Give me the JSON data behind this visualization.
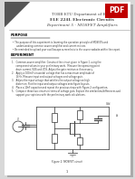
{
  "bg_color": "#ffffff",
  "page_bg": "#d8d8d8",
  "fold_color": "#888888",
  "fold_dark": "#555555",
  "title1": "TOBB ETU Department of ELE",
  "title2": "ELE 224L Electronic Circuits",
  "title3": "Experiment 5 - MOSFET Amplifiers",
  "section1": "PURPOSE",
  "bullet1a": "The purpose of this experiment is learning the operation principle of MOSFETs and",
  "bullet1b": "understanding common source amplifier and current mirrors.",
  "bullet1c": "Be reminded to upload your oscilloscope screenshots to the course website within the report.",
  "section2": "EXPERIMENT",
  "exp1": "1.   Common-source amplifier: Construct the circuit given in Figure 1 using the",
  "exp2": "      component values in your preliminary work.  Measure the operating point",
  "exp3": "      drain current, VGS and VDS. Adjust the gate resistance if necessary.",
  "exp4": "2.   Apply a 100mV sinusoidal voltage that has a maximum amplitude of",
  "exp5": "      1kHz. Measure input and output voltages and voltage gain.",
  "exp6": "3.   Adjust the input voltage that satisfies the output voltage on high",
  "exp7": "      distortion. Plot the input and output voltages onto figure layouts.",
  "exp8": "4.   Place a 10nF capacitor and repeat the previous steps with Figure 2 configuration.",
  "exp9": "5.   Compare these two circuits in terms of voltage gain. Explain the similarities/differences and",
  "exp10": "      support your opinions with the preliminary work calculations.",
  "fig_caption": "Figure 1: MOSFET circuit",
  "page_num": "1",
  "pdf_badge_color": "#c00000",
  "pdf_badge_text": "PDF",
  "text_color": "#333333",
  "section_color": "#000000",
  "title_color": "#444444",
  "line_color": "#999999"
}
